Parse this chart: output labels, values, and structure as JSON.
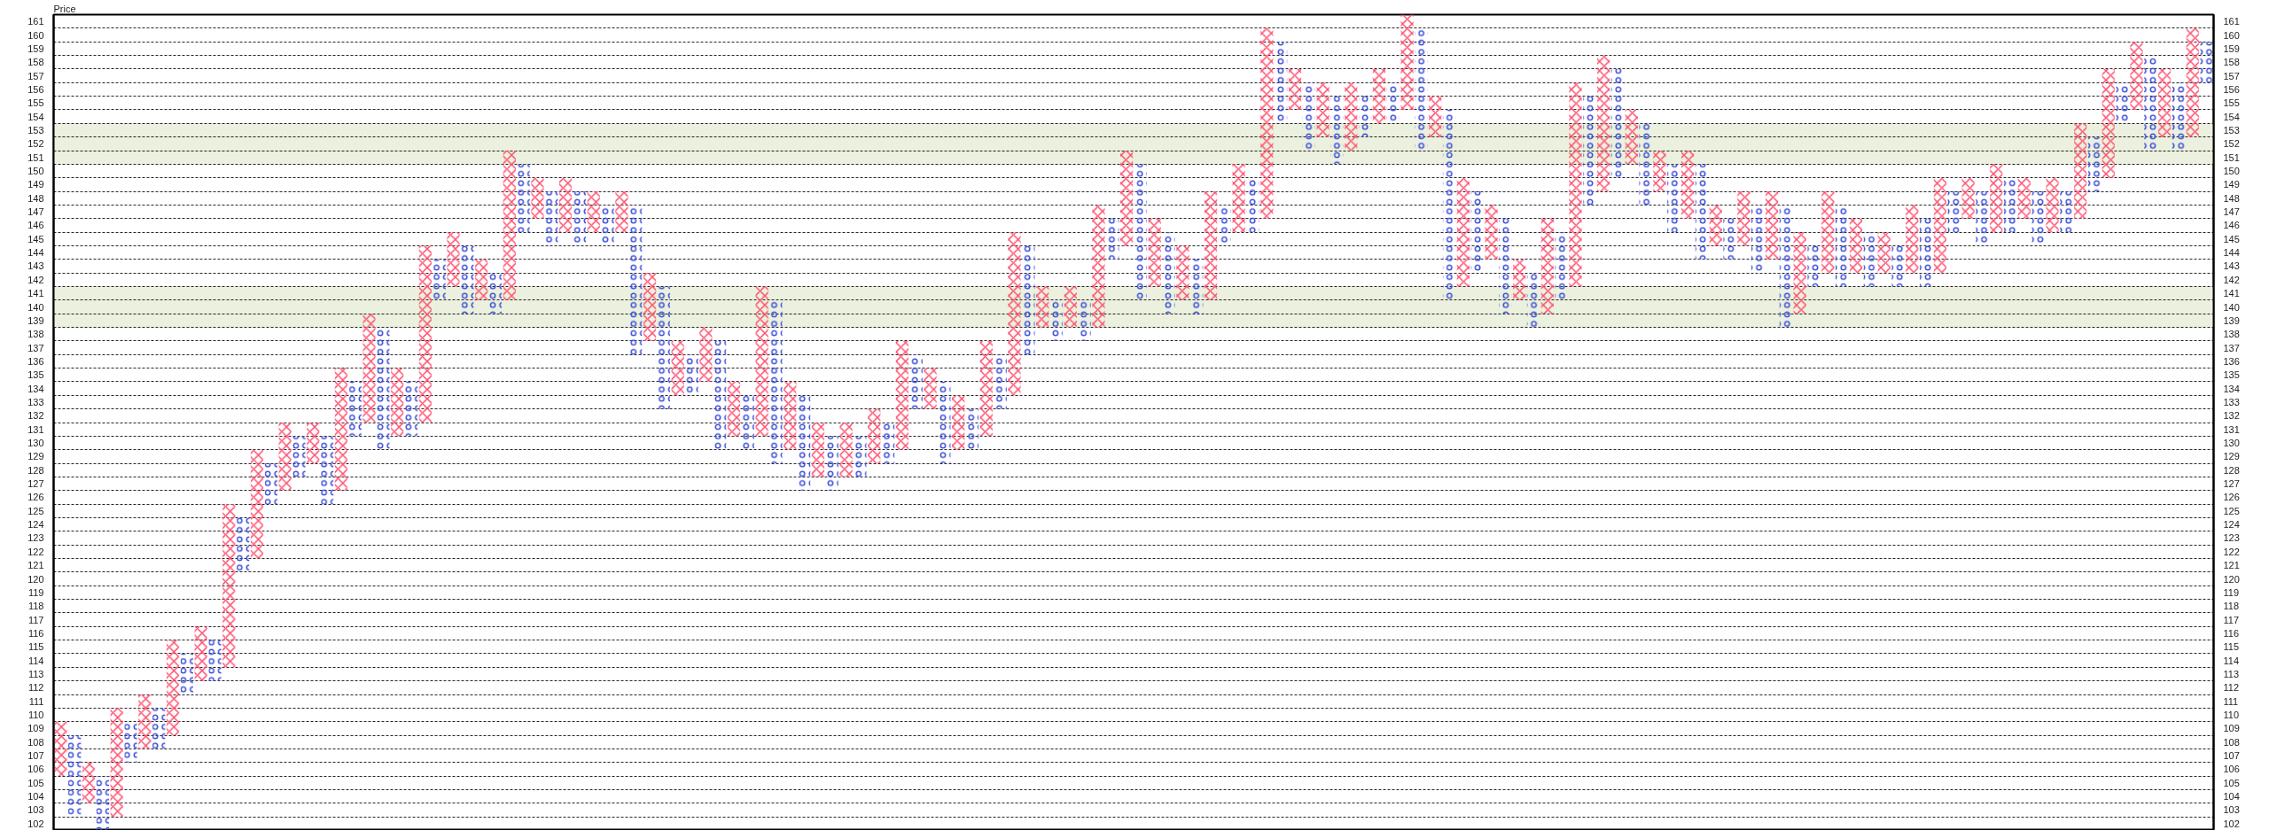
{
  "chart_data": {
    "type": "bar",
    "ylabel": "Price",
    "categories": [
      null,
      null,
      null,
      null,
      null,
      null,
      null,
      null,
      null,
      null,
      null,
      null,
      null,
      null,
      null,
      null,
      null,
      null,
      null,
      null,
      null,
      null,
      null,
      null,
      null,
      null,
      null,
      null,
      null,
      null,
      null,
      null,
      null,
      null,
      null,
      null,
      null,
      null,
      null,
      null,
      null,
      null,
      null,
      null,
      null,
      null,
      null,
      null,
      null,
      null,
      null,
      null,
      null,
      null,
      null,
      null,
      null,
      null,
      null,
      null,
      null,
      null,
      null,
      null,
      null,
      null,
      null,
      null,
      null,
      null,
      null,
      null,
      null,
      null,
      null,
      null,
      null,
      null,
      null,
      null,
      null,
      null,
      null,
      null,
      null,
      null,
      null,
      null,
      null,
      null,
      null,
      null,
      null,
      null,
      null,
      null,
      null,
      null,
      null,
      null,
      null,
      null,
      null,
      null,
      null,
      null,
      null,
      null,
      null,
      null,
      null,
      null,
      null,
      null,
      null,
      null,
      null,
      null,
      null,
      null,
      null,
      null,
      null,
      null,
      null,
      null,
      null,
      null,
      null,
      null,
      null,
      null,
      null,
      null,
      null,
      null,
      null,
      null,
      null,
      null,
      null,
      null,
      null,
      null,
      null,
      null,
      null,
      null,
      null,
      null,
      null,
      null,
      null,
      null
    ],
    "series": [
      {
        "color": "#ff4d6d",
        "marker": "cross",
        "base": [
          106,
          null,
          104,
          null,
          103,
          null,
          108,
          null,
          109,
          null,
          113,
          null,
          114,
          null,
          122,
          null,
          127,
          null,
          129,
          null,
          127,
          null,
          132,
          null,
          131,
          null,
          132,
          null,
          142,
          null,
          141,
          null,
          141,
          null,
          147,
          null,
          146,
          null,
          146,
          null,
          146,
          null,
          138,
          null,
          134,
          null,
          135,
          null,
          131,
          null,
          131,
          null,
          130,
          null,
          128,
          null,
          128,
          null,
          129,
          null,
          130,
          null,
          133,
          null,
          130,
          null,
          131,
          null,
          134,
          null,
          139,
          null,
          139,
          null,
          139,
          null,
          145,
          null,
          142,
          null,
          141,
          null,
          141,
          null,
          146,
          null,
          147,
          null,
          155,
          null,
          153,
          null,
          152,
          null,
          154,
          null,
          155,
          null,
          153,
          null,
          142,
          null,
          144,
          null,
          141,
          null,
          140,
          null,
          142,
          null,
          149,
          null,
          151,
          null,
          149,
          null,
          147,
          null,
          145,
          null,
          145,
          null,
          144,
          null,
          140,
          null,
          143,
          null,
          143,
          null,
          143,
          null,
          143,
          null,
          143,
          null,
          147,
          null,
          146,
          null,
          147,
          null,
          146,
          null,
          147,
          null,
          150,
          null,
          155,
          null,
          153,
          null,
          153,
          null
        ],
        "values": [
          4,
          null,
          3,
          null,
          8,
          null,
          4,
          null,
          7,
          null,
          4,
          null,
          12,
          null,
          8,
          null,
          5,
          null,
          3,
          null,
          9,
          null,
          8,
          null,
          5,
          null,
          13,
          null,
          4,
          null,
          3,
          null,
          11,
          null,
          3,
          null,
          4,
          null,
          3,
          null,
          3,
          null,
          5,
          null,
          4,
          null,
          4,
          null,
          4,
          null,
          11,
          null,
          5,
          null,
          4,
          null,
          4,
          null,
          4,
          null,
          8,
          null,
          3,
          null,
          4,
          null,
          7,
          null,
          12,
          null,
          3,
          null,
          3,
          null,
          9,
          null,
          7,
          null,
          5,
          null,
          4,
          null,
          8,
          null,
          5,
          null,
          14,
          null,
          3,
          null,
          4,
          null,
          5,
          null,
          4,
          null,
          7,
          null,
          3,
          null,
          8,
          null,
          4,
          null,
          3,
          null,
          7,
          null,
          15,
          null,
          10,
          null,
          4,
          null,
          3,
          null,
          5,
          null,
          3,
          null,
          4,
          null,
          5,
          null,
          6,
          null,
          6,
          null,
          4,
          null,
          3,
          null,
          5,
          null,
          7,
          null,
          3,
          null,
          5,
          null,
          3,
          null,
          4,
          null,
          7,
          null,
          8,
          null,
          5,
          null,
          5,
          null,
          8,
          null
        ]
      },
      {
        "color": "#3c4fd8",
        "marker": "circle",
        "base": [
          null,
          103,
          null,
          102,
          null,
          107,
          null,
          108,
          null,
          112,
          null,
          113,
          null,
          121,
          null,
          126,
          null,
          128,
          null,
          126,
          null,
          131,
          null,
          130,
          null,
          131,
          null,
          141,
          null,
          140,
          null,
          140,
          null,
          146,
          null,
          145,
          null,
          145,
          null,
          145,
          null,
          137,
          null,
          133,
          null,
          134,
          null,
          130,
          null,
          130,
          null,
          129,
          null,
          127,
          null,
          127,
          null,
          128,
          null,
          129,
          null,
          133,
          null,
          129,
          null,
          130,
          null,
          133,
          null,
          137,
          null,
          138,
          null,
          138,
          null,
          144,
          null,
          141,
          null,
          140,
          null,
          140,
          null,
          145,
          null,
          146,
          null,
          154,
          null,
          152,
          null,
          151,
          null,
          153,
          null,
          154,
          null,
          152,
          null,
          141,
          null,
          143,
          null,
          140,
          null,
          139,
          null,
          141,
          null,
          148,
          null,
          150,
          null,
          148,
          null,
          146,
          null,
          144,
          null,
          144,
          null,
          143,
          null,
          139,
          null,
          142,
          null,
          142,
          null,
          142,
          null,
          142,
          null,
          142,
          null,
          146,
          null,
          145,
          null,
          146,
          null,
          145,
          null,
          146,
          null,
          149,
          null,
          154,
          null,
          152,
          null,
          152,
          null,
          157
        ],
        "values": [
          null,
          6,
          null,
          4,
          null,
          3,
          null,
          3,
          null,
          3,
          null,
          3,
          null,
          4,
          null,
          3,
          null,
          3,
          null,
          5,
          null,
          4,
          null,
          9,
          null,
          4,
          null,
          3,
          null,
          5,
          null,
          3,
          null,
          5,
          null,
          4,
          null,
          4,
          null,
          3,
          null,
          11,
          null,
          9,
          null,
          3,
          null,
          8,
          null,
          4,
          null,
          12,
          null,
          7,
          null,
          4,
          null,
          3,
          null,
          3,
          null,
          4,
          null,
          6,
          null,
          3,
          null,
          4,
          null,
          8,
          null,
          3,
          null,
          3,
          null,
          3,
          null,
          10,
          null,
          6,
          null,
          4,
          null,
          3,
          null,
          4,
          null,
          6,
          null,
          5,
          null,
          5,
          null,
          3,
          null,
          3,
          null,
          9,
          null,
          14,
          null,
          6,
          null,
          7,
          null,
          4,
          null,
          5,
          null,
          8,
          null,
          8,
          null,
          6,
          null,
          5,
          null,
          7,
          null,
          3,
          null,
          5,
          null,
          9,
          null,
          3,
          null,
          6,
          null,
          4,
          null,
          3,
          null,
          5,
          null,
          3,
          null,
          4,
          null,
          4,
          null,
          4,
          null,
          3,
          null,
          4,
          null,
          3,
          null,
          7,
          null,
          5,
          null,
          3
        ]
      }
    ],
    "ylim": [
      102,
      162
    ],
    "yticks": [
      102,
      103,
      104,
      105,
      106,
      107,
      108,
      109,
      110,
      111,
      112,
      113,
      114,
      115,
      116,
      117,
      118,
      119,
      120,
      121,
      122,
      123,
      124,
      125,
      126,
      127,
      128,
      129,
      130,
      131,
      132,
      133,
      134,
      135,
      136,
      137,
      138,
      139,
      140,
      141,
      142,
      143,
      144,
      145,
      146,
      147,
      148,
      149,
      150,
      151,
      152,
      153,
      154,
      155,
      156,
      157,
      158,
      159,
      160,
      161
    ],
    "y2lim": [
      102,
      162
    ],
    "y2ticks": [
      102,
      103,
      104,
      105,
      106,
      107,
      108,
      109,
      110,
      111,
      112,
      113,
      114,
      115,
      116,
      117,
      118,
      119,
      120,
      121,
      122,
      123,
      124,
      125,
      126,
      127,
      128,
      129,
      130,
      131,
      132,
      133,
      134,
      135,
      136,
      137,
      138,
      139,
      140,
      141,
      142,
      143,
      144,
      145,
      146,
      147,
      148,
      149,
      150,
      151,
      152,
      153,
      154,
      155,
      156,
      157,
      158,
      159,
      160,
      161
    ],
    "bands": [
      {
        "axis": "y",
        "from": 151,
        "to": 154,
        "color": "#ebf1de"
      },
      {
        "axis": "y",
        "from": 139,
        "to": 142,
        "color": "#ebf1de"
      }
    ],
    "grid": "y",
    "tick_labels": "y"
  }
}
